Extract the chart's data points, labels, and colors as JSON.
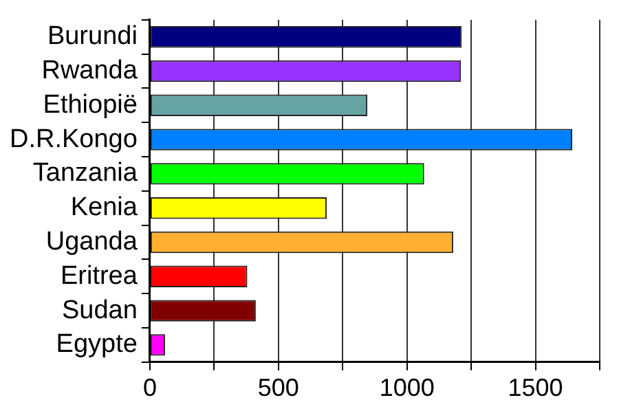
{
  "chart_data": {
    "type": "bar",
    "orientation": "horizontal",
    "categories": [
      "Burundi",
      "Rwanda",
      "Ethiopië",
      "D.R.Kongo",
      "Tanzania",
      "Kenia",
      "Uganda",
      "Eritrea",
      "Sudan",
      "Egypte"
    ],
    "values": [
      1213,
      1210,
      846,
      1643,
      1067,
      688,
      1180,
      379,
      412,
      59
    ],
    "colors": [
      "#000080",
      "#9933ff",
      "#66a3a3",
      "#0080ff",
      "#00ff00",
      "#ffff00",
      "#ffb030",
      "#ff0000",
      "#800000",
      "#ff00ff"
    ],
    "xlim": [
      0,
      1750
    ],
    "xticks": [
      0,
      {
        "value": 250,
        "label": null
      },
      500,
      {
        "value": 750,
        "label": null
      },
      1000,
      {
        "value": 1250,
        "label": null
      },
      1500,
      {
        "value": 1750,
        "label": null
      }
    ],
    "grid": "x"
  }
}
